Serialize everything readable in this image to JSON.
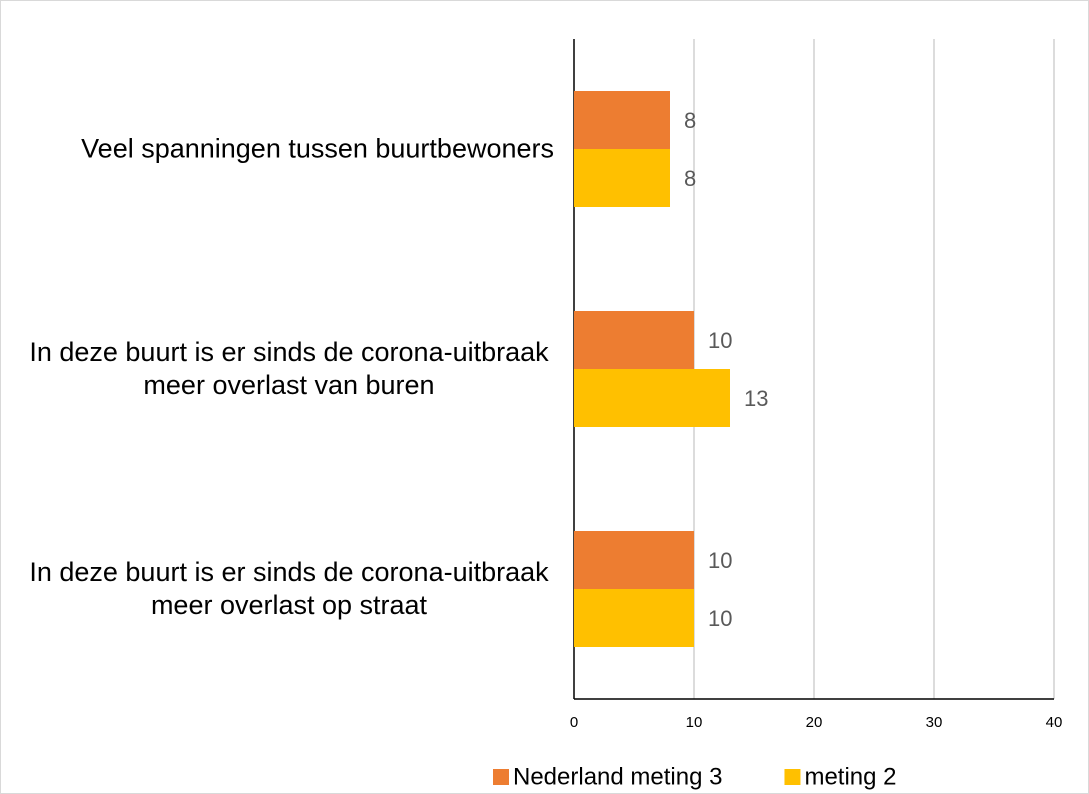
{
  "chart_data": {
    "type": "hbar",
    "categories": [
      "Veel spanningen tussen buurtbewoners",
      "In deze buurt is er sinds de corona-uitbraak meer overlast van buren",
      "In deze buurt is er sinds de corona-uitbraak meer overlast op straat"
    ],
    "series": [
      {
        "name": "Nederland meting 3",
        "color": "#ed7d31",
        "values": [
          8,
          10,
          10
        ]
      },
      {
        "name": "meting 2",
        "color": "#ffc000",
        "values": [
          8,
          13,
          10
        ]
      }
    ],
    "xlim": [
      0,
      40
    ],
    "xticks": [
      0,
      10,
      20,
      30,
      40
    ],
    "grid": true,
    "legend": "bottom"
  }
}
